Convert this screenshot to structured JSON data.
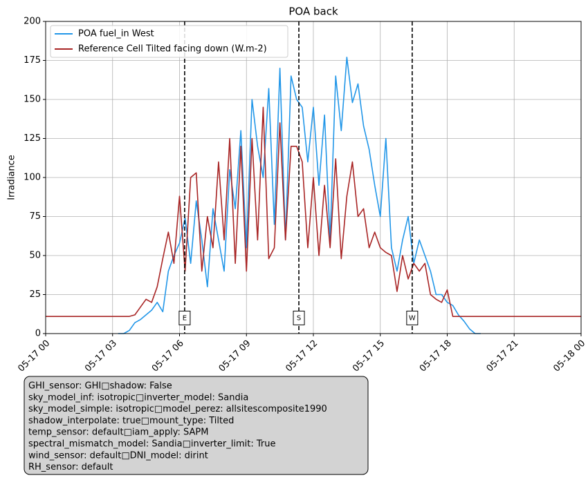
{
  "chart_data": {
    "type": "line",
    "title": "POA back",
    "ylabel": "Irradiance",
    "x": [
      0,
      3.25,
      3.5,
      3.75,
      4.0,
      4.25,
      4.5,
      4.75,
      5.0,
      5.25,
      5.5,
      5.75,
      6.0,
      6.25,
      6.5,
      6.75,
      7.0,
      7.25,
      7.5,
      7.75,
      8.0,
      8.25,
      8.5,
      8.75,
      9.0,
      9.25,
      9.5,
      9.75,
      10.0,
      10.25,
      10.5,
      10.75,
      11.0,
      11.25,
      11.5,
      11.75,
      12.0,
      12.25,
      12.5,
      12.75,
      13.0,
      13.25,
      13.5,
      13.75,
      14.0,
      14.25,
      14.5,
      14.75,
      15.0,
      15.25,
      15.5,
      15.75,
      16.0,
      16.25,
      16.5,
      16.75,
      17.0,
      17.25,
      17.5,
      17.75,
      18.0,
      18.25,
      18.5,
      18.75,
      19.0,
      19.25,
      19.5,
      24
    ],
    "series": [
      {
        "name": "POA fuel_in West",
        "color": "#2196e8",
        "values": [
          null,
          0,
          0,
          2,
          7,
          9,
          12,
          15,
          20,
          14,
          40,
          50,
          58,
          74,
          45,
          85,
          60,
          30,
          80,
          60,
          40,
          105,
          80,
          130,
          55,
          150,
          120,
          100,
          157,
          70,
          170,
          60,
          165,
          150,
          145,
          110,
          145,
          95,
          140,
          60,
          165,
          130,
          177,
          148,
          160,
          133,
          118,
          95,
          75,
          125,
          55,
          40,
          60,
          75,
          45,
          60,
          50,
          40,
          25,
          25,
          20,
          18,
          12,
          8,
          3,
          0,
          0,
          null
        ]
      },
      {
        "name": "Reference Cell Tilted facing down (W.m-2)",
        "color": "#a82424",
        "values": [
          11,
          11,
          11,
          11,
          12,
          17,
          22,
          20,
          30,
          48,
          65,
          45,
          88,
          40,
          100,
          103,
          40,
          75,
          55,
          110,
          60,
          125,
          45,
          120,
          40,
          125,
          60,
          145,
          48,
          55,
          135,
          60,
          120,
          120,
          110,
          55,
          100,
          50,
          95,
          55,
          112,
          48,
          88,
          110,
          75,
          80,
          55,
          65,
          55,
          52,
          50,
          27,
          50,
          35,
          45,
          40,
          45,
          25,
          22,
          20,
          28,
          11,
          11,
          11,
          11,
          11,
          11,
          11
        ]
      }
    ],
    "xlim": [
      0,
      24
    ],
    "xticks": [
      {
        "value": 0,
        "label": "05-17 00"
      },
      {
        "value": 3,
        "label": "05-17 03"
      },
      {
        "value": 6,
        "label": "05-17 06"
      },
      {
        "value": 9,
        "label": "05-17 09"
      },
      {
        "value": 12,
        "label": "05-17 12"
      },
      {
        "value": 15,
        "label": "05-17 15"
      },
      {
        "value": 18,
        "label": "05-17 18"
      },
      {
        "value": 21,
        "label": "05-17 21"
      },
      {
        "value": 24,
        "label": "05-18 00"
      }
    ],
    "ylim": [
      0,
      200
    ],
    "yticks": [
      0,
      25,
      50,
      75,
      100,
      125,
      150,
      175,
      200
    ],
    "grid": true,
    "legend": "upper left",
    "vlines": [
      {
        "x": 6.23,
        "label": "E"
      },
      {
        "x": 11.35,
        "label": "S"
      },
      {
        "x": 16.43,
        "label": "W"
      }
    ],
    "info_box": [
      "GHI_sensor: GHI□shadow: False",
      "sky_model_inf: isotropic□inverter_model: Sandia",
      "sky_model_simple: isotropic□model_perez: allsitescomposite1990",
      "shadow_interpolate: true□mount_type: Tilted",
      "temp_sensor: default□iam_apply: SAPM",
      "spectral_mismatch_model: Sandia□inverter_limit: True",
      "wind_sensor: default□DNI_model: dirint",
      "RH_sensor: default"
    ]
  }
}
